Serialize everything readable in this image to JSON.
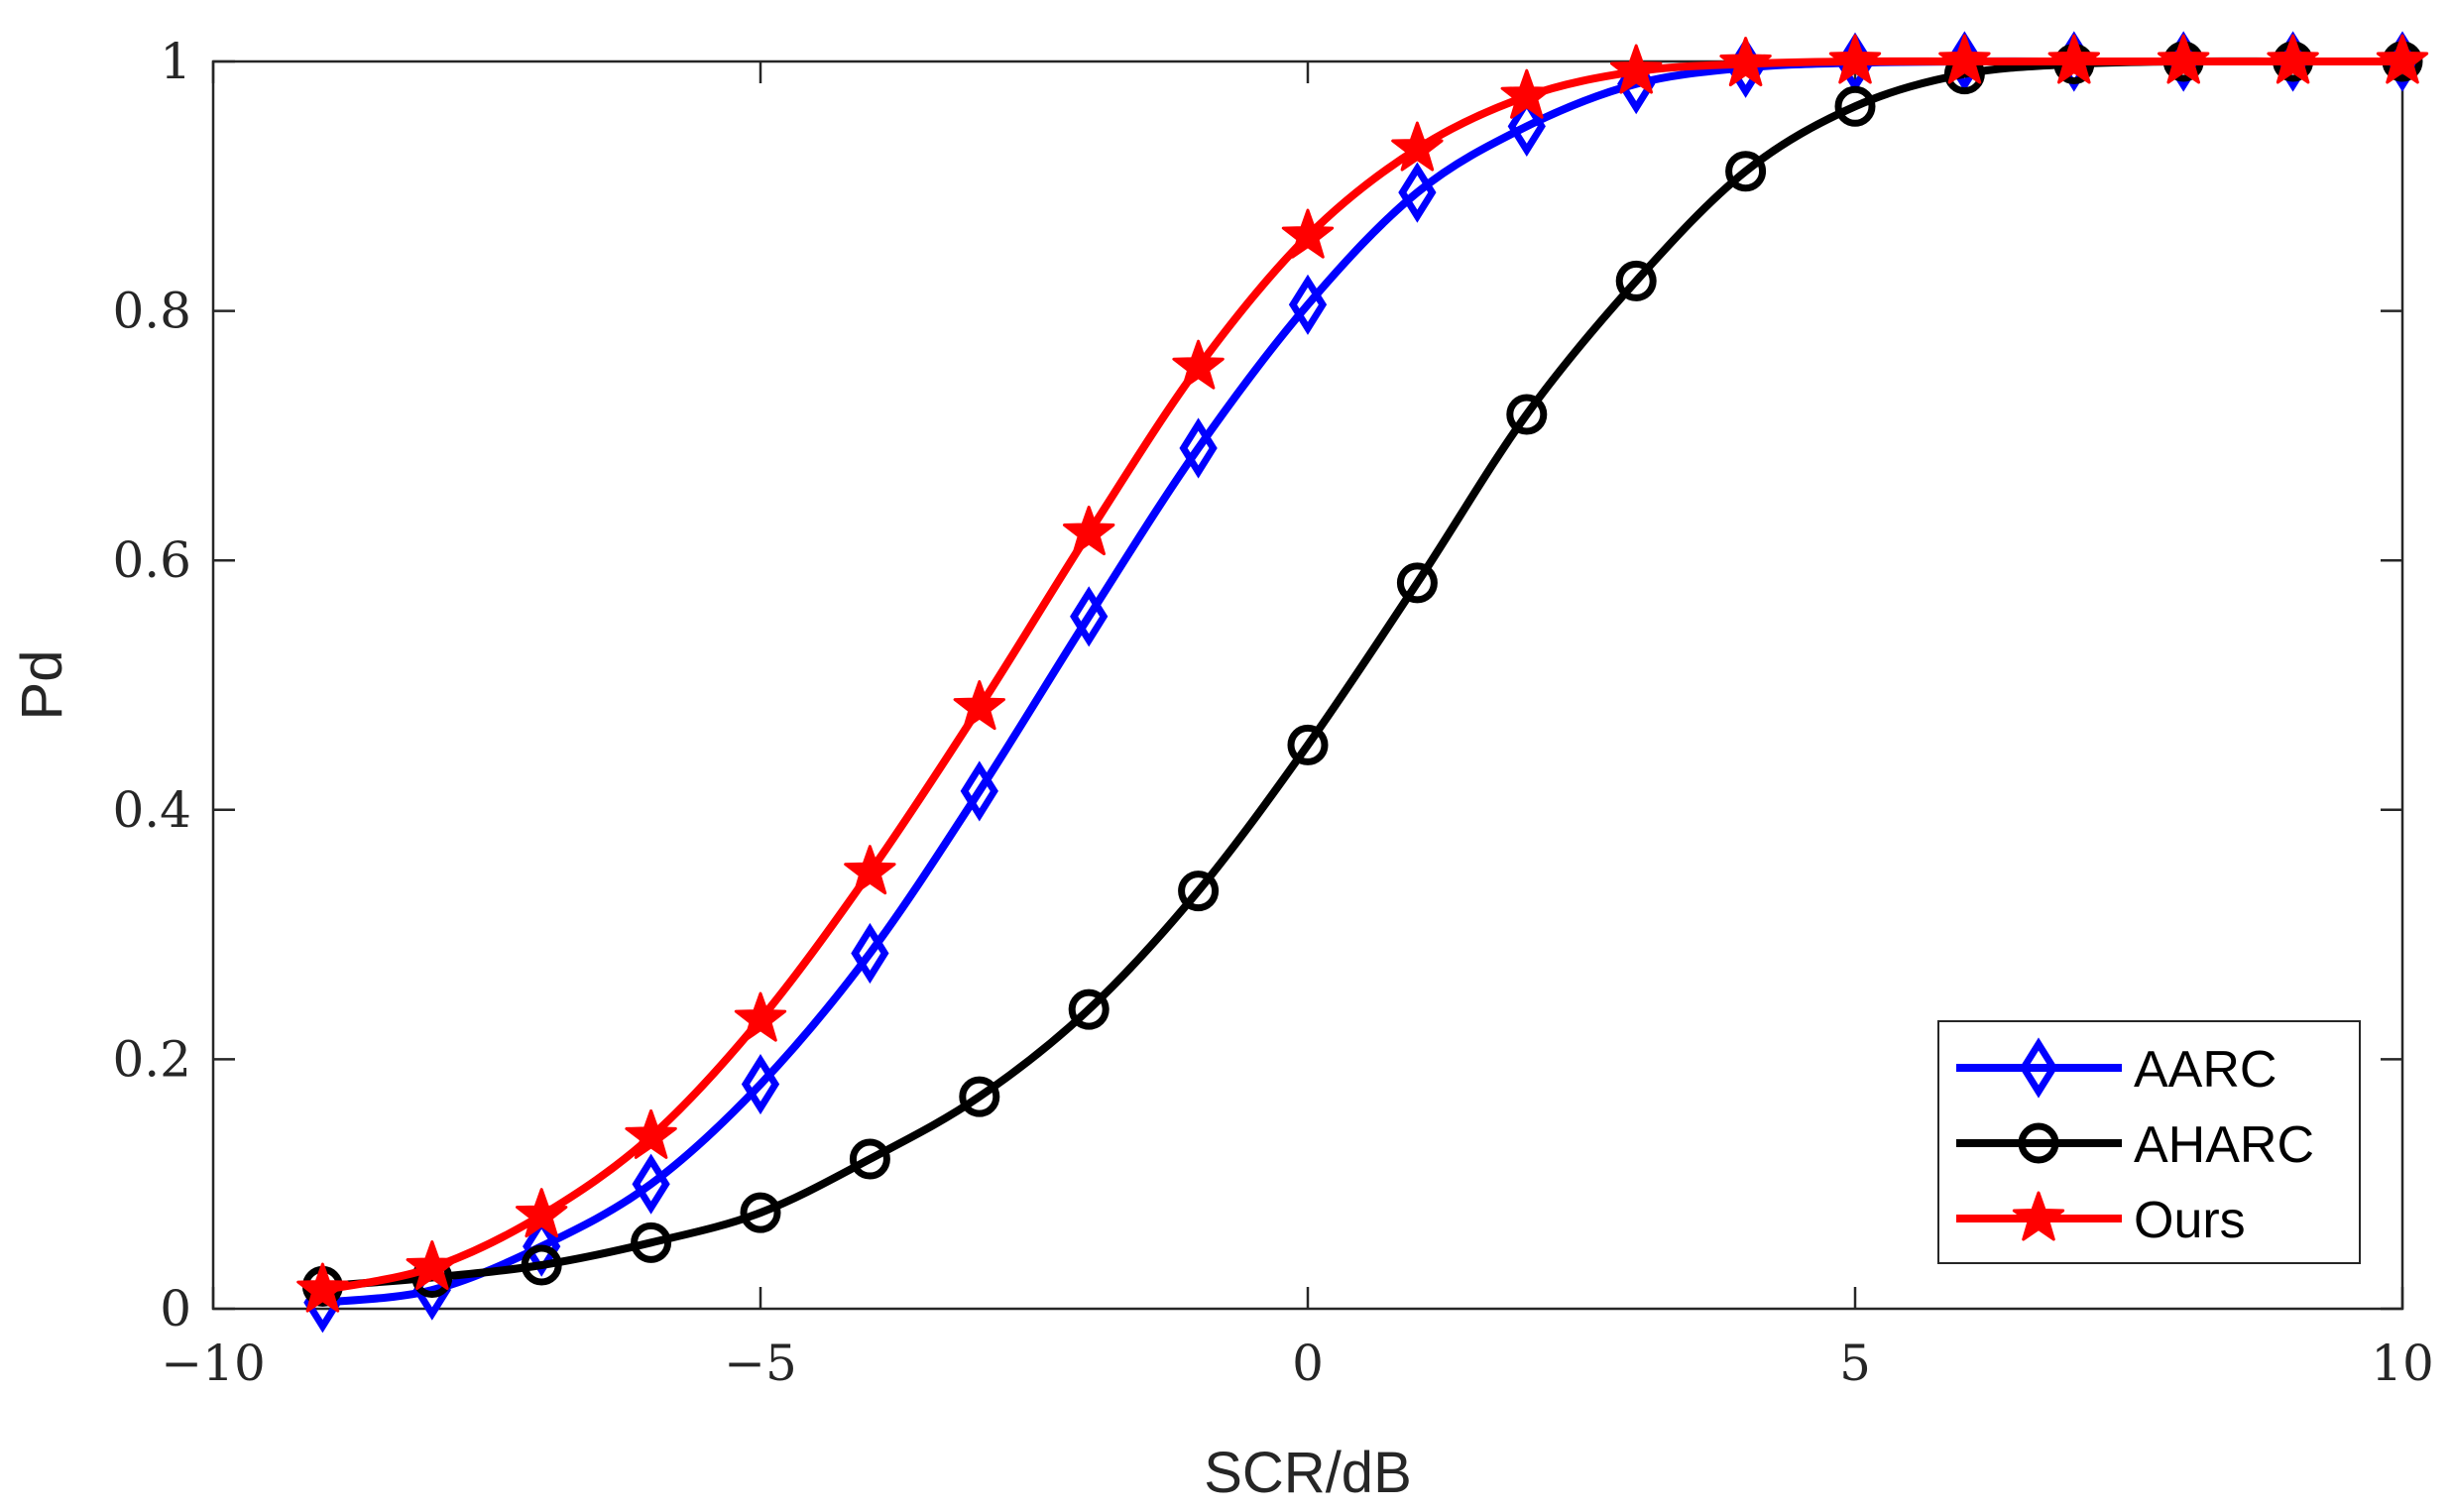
{
  "chart_data": {
    "type": "line",
    "xlabel": "SCR/dB",
    "ylabel": "Pd",
    "xlim": [
      -10,
      10
    ],
    "ylim": [
      0,
      1
    ],
    "xticks": [
      -10,
      -5,
      0,
      5,
      10
    ],
    "xtick_labels": [
      "−10",
      "−5",
      "0",
      "5",
      "10"
    ],
    "yticks": [
      0,
      0.2,
      0.4,
      0.6,
      0.8,
      1
    ],
    "ytick_labels": [
      "0",
      "0.2",
      "0.4",
      "0.6",
      "0.8",
      "1"
    ],
    "grid": false,
    "legend_position": "bottom-right",
    "x": [
      -9,
      -8,
      -7,
      -6,
      -5,
      -4,
      -3,
      -2,
      -1,
      0,
      1,
      2,
      3,
      4,
      5,
      6,
      7,
      8,
      9,
      10
    ],
    "series": [
      {
        "name": "AARC",
        "color": "#0000ff",
        "marker": "diamond",
        "values": [
          0.005,
          0.015,
          0.05,
          0.1,
          0.18,
          0.285,
          0.415,
          0.555,
          0.69,
          0.805,
          0.895,
          0.948,
          0.982,
          0.995,
          0.999,
          1.0,
          1.0,
          1.0,
          1.0,
          1.0
        ]
      },
      {
        "name": "AHARC",
        "color": "#000000",
        "marker": "circle",
        "values": [
          0.018,
          0.025,
          0.035,
          0.053,
          0.077,
          0.12,
          0.17,
          0.24,
          0.335,
          0.452,
          0.582,
          0.717,
          0.824,
          0.912,
          0.964,
          0.99,
          0.998,
          1.0,
          1.0,
          1.0
        ]
      },
      {
        "name": "Ours",
        "color": "#ff0000",
        "marker": "star",
        "values": [
          0.015,
          0.033,
          0.075,
          0.138,
          0.232,
          0.35,
          0.482,
          0.622,
          0.755,
          0.86,
          0.93,
          0.972,
          0.992,
          0.998,
          1.0,
          1.0,
          1.0,
          1.0,
          1.0,
          1.0
        ]
      }
    ]
  }
}
